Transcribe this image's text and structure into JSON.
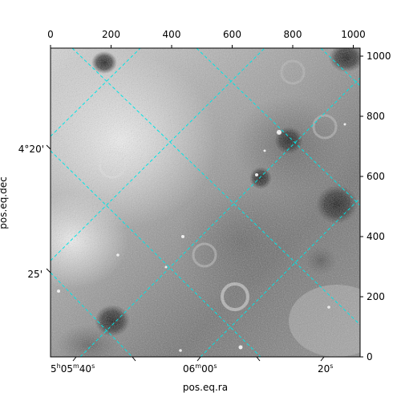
{
  "figure": {
    "xlabel": "pos.eq.ra",
    "ylabel": "pos.eq.dec",
    "top_ticks": [
      "0",
      "200",
      "400",
      "600",
      "800",
      "1000"
    ],
    "right_ticks": [
      "0",
      "200",
      "400",
      "600",
      "800",
      "1000"
    ],
    "ra_ticks": [
      {
        "h": "5",
        "hs": "h",
        "m": "05",
        "ms": "m",
        "s": "40",
        "ss": "s"
      },
      {
        "h": "",
        "hs": "",
        "m": "06",
        "ms": "m",
        "s": "00",
        "ss": "s"
      },
      {
        "h": "",
        "hs": "",
        "m": "",
        "ms": "",
        "s": "20",
        "ss": "s"
      }
    ],
    "dec_ticks": [
      "4°20'",
      "25'"
    ],
    "colors": {
      "grid": "#00e5e5",
      "frame": "#000000",
      "background": "#ffffff"
    }
  }
}
